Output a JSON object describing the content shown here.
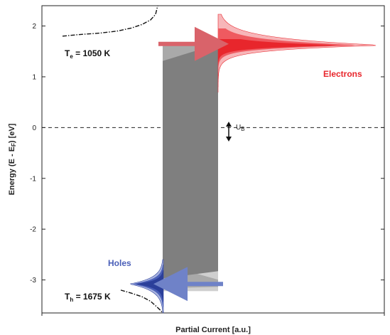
{
  "chart_data": {
    "type": "line",
    "title": "",
    "xlabel": "Partial Current  [a.u.]",
    "ylabel": "Energy (E - E",
    "ylabel_sub": "F",
    "ylabel_end": ") [eV]",
    "ylim": [
      -3.65,
      2.4
    ],
    "yticks": [
      -3,
      -2,
      -1,
      0,
      1,
      2
    ],
    "ytick_labels": [
      "-3",
      "-2",
      "-1",
      "0",
      "1",
      "2"
    ],
    "grid": false,
    "fermi_level": 0,
    "barrier_top": 1.62,
    "barrier_bottom": -3.08,
    "electron_peak_energy": 1.62,
    "hole_peak_energy": -3.08,
    "annotations": {
      "electrons": "Electrons",
      "holes": "Holes",
      "te_main": "T",
      "te_sub": "e",
      "te_value": " = 1050 K",
      "th_main": "T",
      "th_sub": "h",
      "th_value": " = 1675 K",
      "ub_main": "U",
      "ub_sub": "B"
    },
    "colors": {
      "electron_dark": "#e8262c",
      "electron_mid": "#ef5a60",
      "electron_light": "#f7b6b9",
      "hole_dark": "#2b3f9a",
      "hole_mid": "#4a5fb8",
      "hole_light": "#a9b4e0",
      "barrier": "#7f7f7f",
      "barrier_light": "#bdbdbd",
      "arrow_red": "#d9636a",
      "arrow_blue": "#6f82c8"
    }
  }
}
